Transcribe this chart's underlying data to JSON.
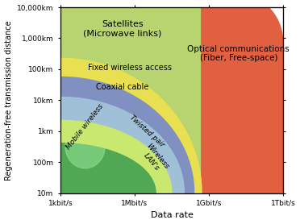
{
  "xlabel": "Data rate",
  "ylabel": "Regeneration-free transmission distance",
  "xlim": [
    3,
    12
  ],
  "ylim": [
    1,
    7
  ],
  "x_ticks": [
    3,
    6,
    9,
    12
  ],
  "x_tick_labels": [
    "1kbit/s",
    "1Mbit/s",
    "1Gbit/s",
    "1Tbit/s"
  ],
  "y_ticks": [
    1,
    2,
    3,
    4,
    5,
    6,
    7
  ],
  "y_tick_labels": [
    "10m",
    "100m",
    "1km",
    "10km",
    "100km",
    "1,000km",
    "10,000km"
  ],
  "sat_color": "#b8d470",
  "optical_color": "#e06040",
  "fwa_color": "#e8e050",
  "coax_color": "#8090c0",
  "mobile_color": "#50a855",
  "tp_color": "#a0c0d8",
  "wlan_color": "#c8e870",
  "mobile_highlight": "#90e090"
}
